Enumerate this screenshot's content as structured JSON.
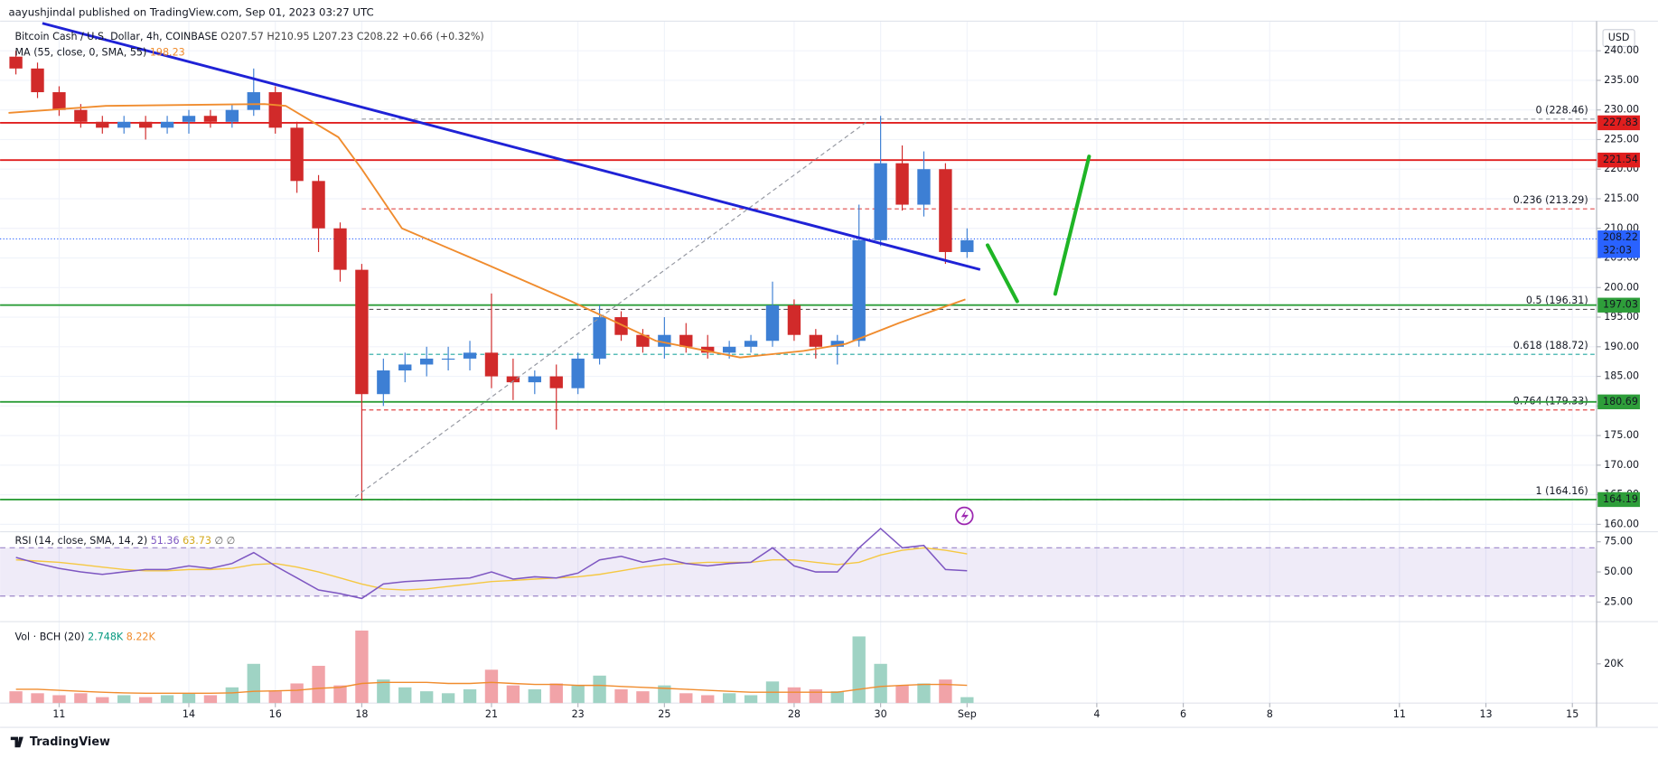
{
  "header": "aayushjindal published on TradingView.com, Sep 01, 2023 03:27 UTC",
  "footer": "TradingView",
  "chart_data": {
    "type": "candlestick",
    "title": "Bitcoin Cash / U.S. Dollar, 4h, COINBASE",
    "legend_values": [
      "O207.57",
      "H210.95",
      "L207.23",
      "C208.22",
      "+0.66 (+0.32%)"
    ],
    "currency": "USD",
    "up_color": "#3d7fd4",
    "down_color": "#d12a2a",
    "x": [
      10,
      10.5,
      11,
      11.5,
      12,
      12.5,
      13,
      13.5,
      14,
      14.5,
      15,
      15.5,
      16,
      16.5,
      17,
      17.5,
      18,
      18.5,
      19,
      19.5,
      20,
      20.5,
      21,
      21.5,
      22,
      22.5,
      23,
      23.5,
      24,
      24.5,
      25,
      25.5,
      26,
      26.5,
      27,
      27.5,
      28,
      28.5,
      29,
      29.5,
      30,
      30.5,
      31,
      31.5,
      32
    ],
    "open": [
      239,
      237,
      233,
      230,
      228,
      227,
      228,
      227,
      228,
      229,
      228,
      230,
      233,
      227,
      218,
      210,
      203,
      182,
      186,
      187,
      188,
      188,
      189,
      185,
      184,
      185,
      183,
      188,
      195,
      192,
      190,
      192,
      190,
      189,
      190,
      191,
      197,
      192,
      190,
      191,
      208,
      221,
      214,
      220,
      206
    ],
    "high": [
      240,
      238,
      234,
      231,
      229,
      229,
      229,
      229,
      230,
      230,
      231,
      237,
      234,
      228,
      219,
      211,
      204,
      188,
      189,
      190,
      190,
      191,
      199,
      188,
      186,
      187,
      189,
      197,
      196,
      193,
      195,
      194,
      192,
      191,
      192,
      201,
      198,
      193,
      192,
      214,
      229,
      224,
      223,
      221,
      210
    ],
    "low": [
      236,
      232,
      229,
      227,
      226,
      226,
      225,
      226,
      226,
      227,
      227,
      229,
      226,
      216,
      206,
      201,
      164,
      180,
      184,
      185,
      186,
      186,
      183,
      181,
      182,
      176,
      182,
      187,
      191,
      189,
      188,
      189,
      188,
      188,
      189,
      190,
      191,
      188,
      187,
      190,
      207,
      213,
      212,
      204,
      205
    ],
    "close": [
      237,
      233,
      230,
      228,
      227,
      228,
      227,
      228,
      229,
      228,
      230,
      233,
      227,
      218,
      210,
      203,
      182,
      186,
      187,
      188,
      188,
      189,
      185,
      184,
      185,
      183,
      188,
      195,
      192,
      190,
      192,
      190,
      189,
      190,
      191,
      197,
      192,
      190,
      191,
      208,
      221,
      214,
      220,
      206,
      208
    ],
    "xlim": [
      9.83,
      46.56
    ],
    "xticks": [
      11,
      14,
      16,
      18,
      21,
      23,
      25,
      28,
      30,
      {
        "value": 32,
        "label": "Sep"
      },
      {
        "value": 35,
        "label": "4"
      },
      {
        "value": 37,
        "label": "6"
      },
      {
        "value": 39,
        "label": "8"
      },
      {
        "value": 42,
        "label": "11"
      },
      {
        "value": 44,
        "label": "13"
      },
      {
        "value": 46,
        "label": "15"
      }
    ],
    "ylim": [
      159,
      245
    ],
    "yticks": [
      {
        "value": 160,
        "label": "160.00"
      },
      {
        "value": 165,
        "label": "165.00"
      },
      {
        "value": 170,
        "label": "170.00"
      },
      {
        "value": 175,
        "label": "175.00"
      },
      {
        "value": 180,
        "label": "180.00"
      },
      {
        "value": 185,
        "label": "185.00"
      },
      {
        "value": 190,
        "label": "190.00"
      },
      {
        "value": 195,
        "label": "195.00"
      },
      {
        "value": 200,
        "label": "200.00"
      },
      {
        "value": 205,
        "label": "205.00"
      },
      {
        "value": 210,
        "label": "210.00"
      },
      {
        "value": 215,
        "label": "215.00"
      },
      {
        "value": 220,
        "label": "220.00"
      },
      {
        "value": 225,
        "label": "225.00"
      },
      {
        "value": 230,
        "label": "230.00"
      },
      {
        "value": 235,
        "label": "235.00"
      },
      {
        "value": 240,
        "label": "240.00"
      }
    ],
    "grid": true,
    "ma": {
      "label": "MA (55, close, 0, SMA, 55)",
      "value_label": "198.23",
      "color": "#f08c2e",
      "x": [
        9.83,
        12.08,
        15.75,
        16.24,
        17.46,
        18,
        18.93,
        20.89,
        22.84,
        24.8,
        26.75,
        28.22,
        29.2,
        30.42,
        31.96
      ],
      "values": [
        229.5,
        230.7,
        231,
        230.7,
        225.4,
        220,
        210,
        203.9,
        197.7,
        191,
        188.2,
        189.3,
        190.5,
        194,
        198
      ]
    },
    "levels": [
      {
        "value": 227.83,
        "color": "#e01e1e"
      },
      {
        "value": 221.54,
        "color": "#e01e1e"
      },
      {
        "value": 197.03,
        "color": "#2e9e3a"
      },
      {
        "value": 180.69,
        "color": "#2e9e3a"
      },
      {
        "value": 164.19,
        "color": "#2e9e3a"
      }
    ],
    "fib": [
      {
        "label": "0 (228.46)",
        "value": 228.46,
        "color": "#9598a1"
      },
      {
        "label": "0.236 (213.29)",
        "value": 213.29,
        "color": "#e04848"
      },
      {
        "label": "0.5 (196.31)",
        "value": 196.31,
        "color": "#555"
      },
      {
        "label": "0.618 (188.72)",
        "value": 188.72,
        "color": "#22a6a0"
      },
      {
        "label": "0.764 (179.33)",
        "value": 179.33,
        "color": "#e04848"
      },
      {
        "label": "1 (164.16)",
        "value": 164.16,
        "color": "#9598a1"
      }
    ],
    "last": {
      "value": 208.22,
      "countdown": "32:03",
      "color": "#2962ff"
    },
    "rsi": {
      "label": "RSI (14, close, SMA, 14, 2)",
      "value_label": "51.36",
      "ma_label": "63.73",
      "extra": "∅ ∅",
      "color": "#7e57c2",
      "ma_color": "#f5c842",
      "ylim": [
        8.8,
        83.3
      ],
      "band": [
        30,
        70
      ],
      "yticks": [
        {
          "value": 25,
          "label": "25.00"
        },
        {
          "value": 50,
          "label": "50.00"
        },
        {
          "value": 75,
          "label": "75.00"
        }
      ],
      "values": [
        62,
        57,
        53,
        50,
        48,
        50,
        52,
        52,
        55,
        53,
        57,
        66,
        55,
        45,
        35,
        32,
        28,
        40,
        42,
        43,
        44,
        45,
        50,
        44,
        46,
        45,
        49,
        60,
        63,
        58,
        61,
        57,
        55,
        57,
        58,
        70,
        55,
        50,
        50,
        70,
        86,
        70,
        72,
        52,
        51
      ],
      "ma": [
        60,
        59,
        58,
        56,
        54,
        52,
        51,
        51,
        52,
        52,
        53,
        56,
        57,
        54,
        50,
        45,
        40,
        36,
        35,
        36,
        38,
        40,
        42,
        43,
        44,
        45,
        46,
        48,
        51,
        54,
        56,
        57,
        58,
        58,
        58,
        60,
        60,
        58,
        56,
        58,
        64,
        68,
        70,
        68,
        65
      ]
    },
    "volume": {
      "label": "Vol · BCH (20)",
      "value_label": "2.748K",
      "ma_label": "8.22K",
      "up_color": "#9fd3c4",
      "down_color": "#f1a3a8",
      "ma_color": "#f08c2e",
      "ylim": [
        0,
        39400
      ],
      "yticks": [
        {
          "value": 20000,
          "label": "20K"
        }
      ],
      "values": [
        6000,
        5000,
        4000,
        5000,
        3000,
        4000,
        3000,
        4000,
        5000,
        4000,
        8000,
        20000,
        6000,
        10000,
        19000,
        9000,
        37000,
        12000,
        8000,
        6000,
        5000,
        7000,
        17000,
        9000,
        7000,
        10000,
        9000,
        14000,
        7000,
        6000,
        9000,
        5000,
        4000,
        5000,
        4000,
        11000,
        8000,
        7000,
        6000,
        34000,
        20000,
        9000,
        10000,
        12000,
        3000
      ],
      "ma": [
        7000,
        7000,
        6500,
        6000,
        5500,
        5200,
        5000,
        5000,
        5000,
        5000,
        5200,
        6000,
        6200,
        6500,
        7500,
        8000,
        10000,
        10500,
        10500,
        10500,
        10000,
        10000,
        10500,
        10000,
        9500,
        9500,
        9000,
        9000,
        8500,
        8000,
        7500,
        7000,
        6500,
        6000,
        5500,
        5500,
        5500,
        5500,
        5500,
        7000,
        8500,
        9000,
        9500,
        9500,
        9000
      ]
    }
  }
}
